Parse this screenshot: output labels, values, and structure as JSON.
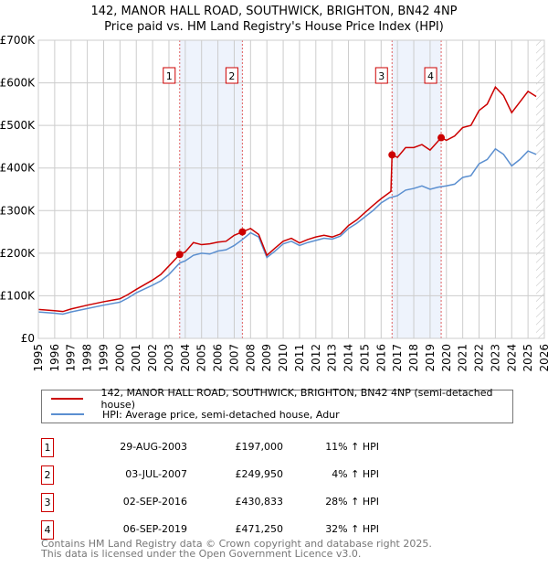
{
  "chart_data": {
    "type": "line",
    "title": "142, MANOR HALL ROAD, SOUTHWICK, BRIGHTON, BN42 4NP",
    "subtitle": "Price paid vs. HM Land Registry's House Price Index (HPI)",
    "xlim": [
      1995,
      2026
    ],
    "ylim": [
      0,
      700000
    ],
    "yticks": [
      {
        "v": 0,
        "label": "£0"
      },
      {
        "v": 100000,
        "label": "£100K"
      },
      {
        "v": 200000,
        "label": "£200K"
      },
      {
        "v": 300000,
        "label": "£300K"
      },
      {
        "v": 400000,
        "label": "£400K"
      },
      {
        "v": 500000,
        "label": "£500K"
      },
      {
        "v": 600000,
        "label": "£600K"
      },
      {
        "v": 700000,
        "label": "£700K"
      }
    ],
    "xticks": [
      "1995",
      "1996",
      "1997",
      "1998",
      "1999",
      "2000",
      "2001",
      "2002",
      "2003",
      "2004",
      "2005",
      "2006",
      "2007",
      "2008",
      "2009",
      "2010",
      "2011",
      "2012",
      "2013",
      "2014",
      "2015",
      "2016",
      "2017",
      "2018",
      "2019",
      "2020",
      "2021",
      "2022",
      "2023",
      "2024",
      "2025",
      "2026"
    ],
    "grid": true,
    "shaded_ranges": [
      [
        2003.66,
        2007.5
      ],
      [
        2016.67,
        2019.68
      ]
    ],
    "hatched_from": 2025.5,
    "series": [
      {
        "name": "142, MANOR HALL ROAD, SOUTHWICK, BRIGHTON, BN42 4NP (semi-detached house)",
        "color": "#cc0000",
        "x": [
          1995,
          1996,
          1996.5,
          1997,
          1998,
          1999,
          2000,
          2000.5,
          2001,
          2002,
          2002.5,
          2003,
          2003.66,
          2004,
          2004.5,
          2005,
          2005.5,
          2006,
          2006.5,
          2007,
          2007.5,
          2008,
          2008.5,
          2009,
          2009.5,
          2010,
          2010.5,
          2011,
          2011.5,
          2012,
          2012.5,
          2013,
          2013.5,
          2014,
          2014.5,
          2015,
          2015.5,
          2016,
          2016.6,
          2016.67,
          2017,
          2017.5,
          2018,
          2018.5,
          2019,
          2019.68,
          2020,
          2020.5,
          2021,
          2021.5,
          2022,
          2022.5,
          2023,
          2023.5,
          2024,
          2024.5,
          2025,
          2025.5
        ],
        "y": [
          68000,
          65000,
          63000,
          69000,
          78000,
          86000,
          93000,
          103000,
          115000,
          137000,
          150000,
          170000,
          197000,
          203000,
          225000,
          220000,
          222000,
          226000,
          228000,
          242000,
          250000,
          258000,
          244000,
          195000,
          212000,
          228000,
          235000,
          224000,
          232000,
          238000,
          242000,
          238000,
          245000,
          265000,
          278000,
          295000,
          312000,
          328000,
          345000,
          430833,
          425000,
          448000,
          448000,
          455000,
          442000,
          471250,
          465000,
          475000,
          495000,
          500000,
          535000,
          550000,
          590000,
          570000,
          530000,
          555000,
          580000,
          568000
        ]
      },
      {
        "name": "HPI: Average price, semi-detached house, Adur",
        "color": "#5b8fd0",
        "x": [
          1995,
          1996,
          1996.5,
          1997,
          1998,
          1999,
          2000,
          2000.5,
          2001,
          2002,
          2002.5,
          2003,
          2003.66,
          2004,
          2004.5,
          2005,
          2005.5,
          2006,
          2006.5,
          2007,
          2007.5,
          2008,
          2008.5,
          2009,
          2009.5,
          2010,
          2010.5,
          2011,
          2011.5,
          2012,
          2012.5,
          2013,
          2013.5,
          2014,
          2014.5,
          2015,
          2015.5,
          2016,
          2016.5,
          2017,
          2017.5,
          2018,
          2018.5,
          2019,
          2019.5,
          2020,
          2020.5,
          2021,
          2021.5,
          2022,
          2022.5,
          2023,
          2023.5,
          2024,
          2024.5,
          2025,
          2025.5
        ],
        "y": [
          62000,
          59000,
          57000,
          62000,
          70000,
          78000,
          85000,
          95000,
          107000,
          125000,
          135000,
          150000,
          177000,
          182000,
          195000,
          200000,
          198000,
          205000,
          208000,
          218000,
          232000,
          248000,
          238000,
          190000,
          205000,
          222000,
          228000,
          218000,
          225000,
          230000,
          235000,
          233000,
          240000,
          258000,
          270000,
          285000,
          300000,
          318000,
          330000,
          335000,
          348000,
          352000,
          358000,
          350000,
          355000,
          358000,
          362000,
          378000,
          382000,
          410000,
          420000,
          445000,
          432000,
          405000,
          420000,
          440000,
          432000
        ]
      }
    ],
    "sales": [
      {
        "n": "1",
        "x": 2003.66,
        "y": 197000,
        "date": "29-AUG-2003",
        "price": "£197,000",
        "hpi": "11% ↑ HPI"
      },
      {
        "n": "2",
        "x": 2007.5,
        "y": 249950,
        "date": "03-JUL-2007",
        "price": "£249,950",
        "hpi": "4% ↑ HPI"
      },
      {
        "n": "3",
        "x": 2016.67,
        "y": 430833,
        "date": "02-SEP-2016",
        "price": "£430,833",
        "hpi": "28% ↑ HPI"
      },
      {
        "n": "4",
        "x": 2019.68,
        "y": 471250,
        "date": "06-SEP-2019",
        "price": "£471,250",
        "hpi": "32% ↑ HPI"
      }
    ]
  },
  "footer": {
    "line1": "Contains HM Land Registry data © Crown copyright and database right 2025.",
    "line2": "This data is licensed under the Open Government Licence v3.0."
  }
}
